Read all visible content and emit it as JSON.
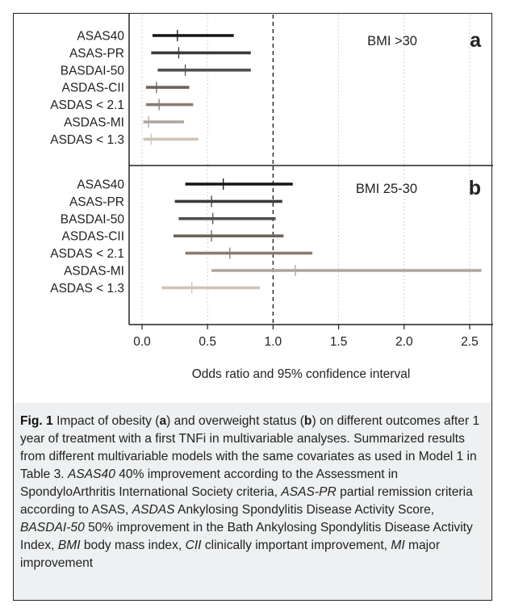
{
  "chart_data": [
    {
      "type": "forest",
      "panel_label": "a",
      "subtitle": "BMI >30",
      "categories": [
        "ASAS40",
        "ASAS-PR",
        "BASDAI-50",
        "ASDAS-CII",
        "ASDAS < 2.1",
        "ASDAS-MI",
        "ASDAS < 1.3"
      ],
      "estimates": [
        0.27,
        0.28,
        0.33,
        0.11,
        0.13,
        0.05,
        0.07
      ],
      "lower": [
        0.08,
        0.07,
        0.12,
        0.03,
        0.03,
        0.01,
        0.01
      ],
      "upper": [
        0.7,
        0.83,
        0.83,
        0.36,
        0.39,
        0.32,
        0.43
      ],
      "colors": [
        "#141414",
        "#3a3a3a",
        "#505050",
        "#6e6358",
        "#8a7c70",
        "#aea59d",
        "#cfc4b5"
      ],
      "reference_line": 1.0,
      "xlim": [
        0,
        2.6
      ]
    },
    {
      "type": "forest",
      "panel_label": "b",
      "subtitle": "BMI 25-30",
      "categories": [
        "ASAS40",
        "ASAS-PR",
        "BASDAI-50",
        "ASDAS-CII",
        "ASDAS < 2.1",
        "ASDAS-MI",
        "ASDAS < 1.3"
      ],
      "estimates": [
        0.62,
        0.53,
        0.54,
        0.53,
        0.67,
        1.17,
        0.38
      ],
      "lower": [
        0.33,
        0.25,
        0.28,
        0.24,
        0.33,
        0.53,
        0.15
      ],
      "upper": [
        1.15,
        1.07,
        1.02,
        1.08,
        1.3,
        2.59,
        0.9
      ],
      "colors": [
        "#141414",
        "#3a3a3a",
        "#505050",
        "#6e6358",
        "#8a7c70",
        "#aea59d",
        "#cfc4b5"
      ],
      "reference_line": 1.0,
      "xlim": [
        0,
        2.6
      ],
      "x_ticks": [
        "0.0",
        "0.5",
        "1.0",
        "1.5",
        "2.0",
        "2.5"
      ],
      "xlabel": "Odds ratio and 95% confidence interval"
    }
  ],
  "caption": {
    "fig_label": "Fig. 1",
    "segments": [
      {
        "t": " Impact of obesity (",
        "s": "n"
      },
      {
        "t": "a",
        "s": "b"
      },
      {
        "t": ") and overweight status (",
        "s": "n"
      },
      {
        "t": "b",
        "s": "b"
      },
      {
        "t": ") on different outcomes after 1 year of treatment with a first TNFi in multivariable analyses. Summarized results from different multivariable models with the same covariates as used in Model 1 in Table 3. ",
        "s": "n"
      },
      {
        "t": "ASAS40",
        "s": "i"
      },
      {
        "t": " 40% improvement according to the Assessment in SpondyloArthritis International Society criteria, ",
        "s": "n"
      },
      {
        "t": "ASAS-PR",
        "s": "i"
      },
      {
        "t": " partial remission criteria according to ASAS, ",
        "s": "n"
      },
      {
        "t": "ASDAS",
        "s": "i"
      },
      {
        "t": " Ankylosing Spondylitis Disease Activity Score, ",
        "s": "n"
      },
      {
        "t": "BASDAI-50",
        "s": "i"
      },
      {
        "t": " 50% improvement in the Bath Ankylosing Spondylitis Disease Activity Index, ",
        "s": "n"
      },
      {
        "t": "BMI",
        "s": "i"
      },
      {
        "t": " body mass index, ",
        "s": "n"
      },
      {
        "t": "CII",
        "s": "i"
      },
      {
        "t": " clinically important improvement, ",
        "s": "n"
      },
      {
        "t": "MI",
        "s": "i"
      },
      {
        "t": " major improvement",
        "s": "n"
      }
    ]
  }
}
